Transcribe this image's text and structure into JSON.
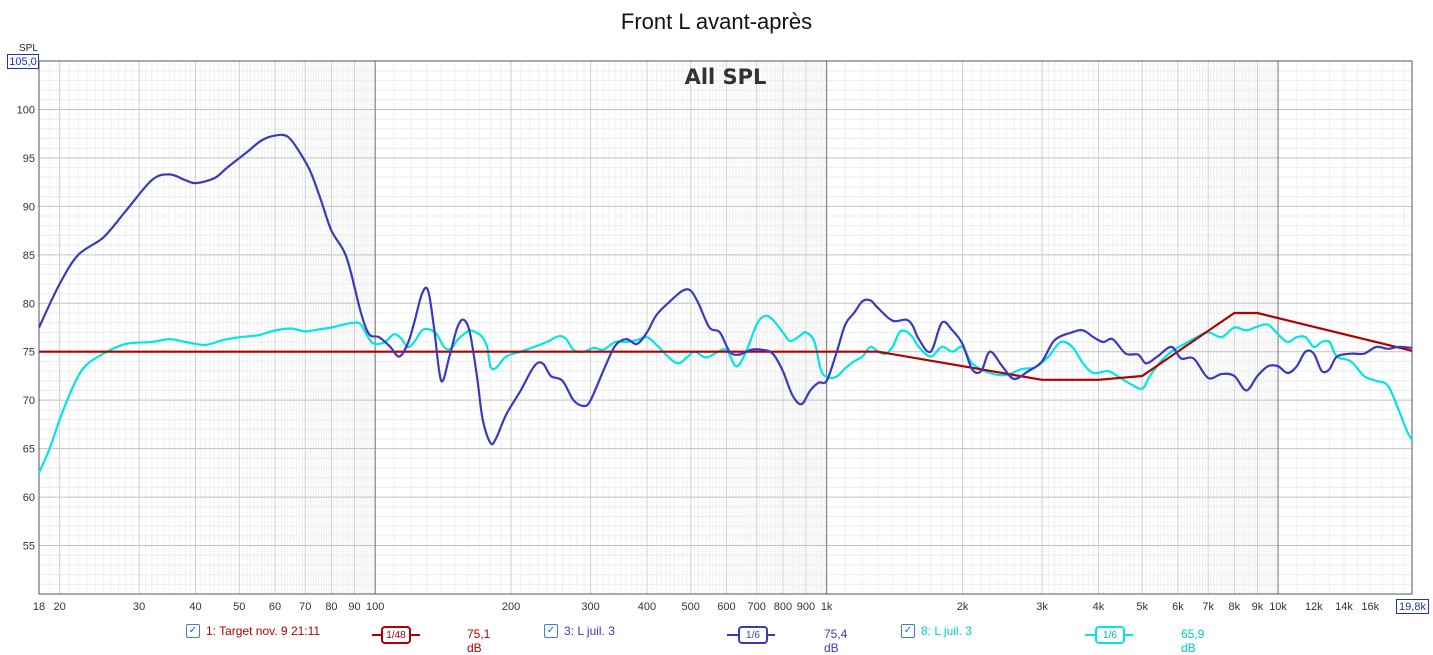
{
  "window": {
    "title": "Front L avant-après"
  },
  "axis": {
    "y_unit": "SPL",
    "y_top_value": "105,0",
    "x_end_value": "19,8k"
  },
  "legend": [
    {
      "checked": true,
      "label": "1: Target nov. 9 21:11",
      "smoothing": "1/48",
      "level": "75,1 dB",
      "color": "#b00000"
    },
    {
      "checked": true,
      "label": "3: L juil. 3",
      "smoothing": "1/6",
      "level": "75,4 dB",
      "color": "#3a3ac0"
    },
    {
      "checked": true,
      "label": "8: L juil. 3",
      "smoothing": "1/6",
      "level": "65,9 dB",
      "color": "#00e5e5"
    }
  ],
  "chart_data": {
    "type": "line",
    "title": "Front L avant-après",
    "subtitle": "All SPL",
    "xlabel": "",
    "ylabel": "SPL",
    "x_scale": "log",
    "xlim": [
      18,
      19800
    ],
    "ylim": [
      50,
      105
    ],
    "grid": true,
    "x_ticks": [
      {
        "v": 18,
        "label": "18"
      },
      {
        "v": 20,
        "label": "20"
      },
      {
        "v": 30,
        "label": "30"
      },
      {
        "v": 40,
        "label": "40"
      },
      {
        "v": 50,
        "label": "50"
      },
      {
        "v": 60,
        "label": "60"
      },
      {
        "v": 70,
        "label": "70"
      },
      {
        "v": 80,
        "label": "80"
      },
      {
        "v": 90,
        "label": "90"
      },
      {
        "v": 100,
        "label": "100"
      },
      {
        "v": 200,
        "label": "200"
      },
      {
        "v": 300,
        "label": "300"
      },
      {
        "v": 400,
        "label": "400"
      },
      {
        "v": 500,
        "label": "500"
      },
      {
        "v": 600,
        "label": "600"
      },
      {
        "v": 700,
        "label": "700"
      },
      {
        "v": 800,
        "label": "800"
      },
      {
        "v": 900,
        "label": "900"
      },
      {
        "v": 1000,
        "label": "1k"
      },
      {
        "v": 2000,
        "label": "2k"
      },
      {
        "v": 3000,
        "label": "3k"
      },
      {
        "v": 4000,
        "label": "4k"
      },
      {
        "v": 5000,
        "label": "5k"
      },
      {
        "v": 6000,
        "label": "6k"
      },
      {
        "v": 7000,
        "label": "7k"
      },
      {
        "v": 8000,
        "label": "8k"
      },
      {
        "v": 9000,
        "label": "9k"
      },
      {
        "v": 10000,
        "label": "10k"
      },
      {
        "v": 12000,
        "label": "12k"
      },
      {
        "v": 14000,
        "label": "14k"
      },
      {
        "v": 16000,
        "label": "16k"
      }
    ],
    "y_ticks": [
      55,
      60,
      65,
      70,
      75,
      80,
      85,
      90,
      95,
      100
    ],
    "series": [
      {
        "name": "1: Target nov. 9 21:11",
        "color": "#b00000",
        "points": [
          [
            18,
            75
          ],
          [
            1300,
            75
          ],
          [
            3000,
            72.1
          ],
          [
            4000,
            72.1
          ],
          [
            5000,
            72.5
          ],
          [
            8000,
            79
          ],
          [
            9000,
            79
          ],
          [
            19800,
            75.1
          ]
        ]
      },
      {
        "name": "3: L juil. 3",
        "color": "#3a3ac0",
        "points": [
          [
            18,
            77.5
          ],
          [
            20,
            82
          ],
          [
            22,
            85
          ],
          [
            25,
            86.8
          ],
          [
            28,
            89.5
          ],
          [
            32,
            92.7
          ],
          [
            35,
            93.3
          ],
          [
            38,
            92.7
          ],
          [
            40,
            92.4
          ],
          [
            44,
            92.9
          ],
          [
            47,
            94
          ],
          [
            52,
            95.6
          ],
          [
            56,
            96.8
          ],
          [
            60,
            97.3
          ],
          [
            64,
            97.2
          ],
          [
            68,
            95.6
          ],
          [
            72,
            93.5
          ],
          [
            76,
            90.5
          ],
          [
            80,
            87.5
          ],
          [
            85,
            85.5
          ],
          [
            88,
            83.5
          ],
          [
            93,
            79
          ],
          [
            97,
            76.8
          ],
          [
            102,
            76.5
          ],
          [
            108,
            75.5
          ],
          [
            113,
            74.5
          ],
          [
            118,
            75.8
          ],
          [
            122,
            78
          ],
          [
            127,
            81
          ],
          [
            131,
            81.3
          ],
          [
            135,
            77.5
          ],
          [
            140,
            72
          ],
          [
            146,
            74.5
          ],
          [
            152,
            77.5
          ],
          [
            157,
            78.3
          ],
          [
            162,
            77
          ],
          [
            168,
            72.5
          ],
          [
            173,
            68
          ],
          [
            180,
            65.6
          ],
          [
            185,
            66
          ],
          [
            195,
            68.5
          ],
          [
            210,
            71
          ],
          [
            225,
            73.5
          ],
          [
            235,
            73.8
          ],
          [
            245,
            72.5
          ],
          [
            260,
            72
          ],
          [
            275,
            70
          ],
          [
            290,
            69.4
          ],
          [
            300,
            70
          ],
          [
            320,
            73
          ],
          [
            340,
            75.6
          ],
          [
            360,
            76.3
          ],
          [
            380,
            75.8
          ],
          [
            400,
            77
          ],
          [
            420,
            78.8
          ],
          [
            450,
            80.2
          ],
          [
            480,
            81.3
          ],
          [
            500,
            81.3
          ],
          [
            520,
            80
          ],
          [
            550,
            77.5
          ],
          [
            580,
            77
          ],
          [
            610,
            75
          ],
          [
            640,
            74.7
          ],
          [
            680,
            75.2
          ],
          [
            720,
            75.2
          ],
          [
            760,
            74.8
          ],
          [
            800,
            73
          ],
          [
            840,
            70.5
          ],
          [
            880,
            69.6
          ],
          [
            920,
            71
          ],
          [
            960,
            71.8
          ],
          [
            1000,
            72
          ],
          [
            1050,
            74.8
          ],
          [
            1100,
            77.8
          ],
          [
            1150,
            79
          ],
          [
            1200,
            80.2
          ],
          [
            1250,
            80.3
          ],
          [
            1300,
            79.5
          ],
          [
            1400,
            78.2
          ],
          [
            1500,
            78.3
          ],
          [
            1550,
            77.7
          ],
          [
            1600,
            76.3
          ],
          [
            1700,
            75
          ],
          [
            1800,
            78
          ],
          [
            1900,
            77.2
          ],
          [
            2000,
            75.8
          ],
          [
            2100,
            73.2
          ],
          [
            2200,
            73
          ],
          [
            2300,
            75
          ],
          [
            2450,
            73.5
          ],
          [
            2600,
            72.2
          ],
          [
            2800,
            73
          ],
          [
            3000,
            74
          ],
          [
            3200,
            76.2
          ],
          [
            3500,
            77
          ],
          [
            3700,
            77.2
          ],
          [
            3900,
            76.5
          ],
          [
            4100,
            76
          ],
          [
            4300,
            76.3
          ],
          [
            4600,
            74.8
          ],
          [
            4900,
            74.7
          ],
          [
            5100,
            73.8
          ],
          [
            5400,
            74.5
          ],
          [
            5800,
            75.5
          ],
          [
            6100,
            74.3
          ],
          [
            6500,
            74.3
          ],
          [
            7000,
            72.3
          ],
          [
            7500,
            72.7
          ],
          [
            8000,
            72.5
          ],
          [
            8500,
            71
          ],
          [
            9000,
            72.5
          ],
          [
            9500,
            73.5
          ],
          [
            10000,
            73.5
          ],
          [
            10500,
            72.8
          ],
          [
            11000,
            73.5
          ],
          [
            11500,
            75
          ],
          [
            12000,
            74.8
          ],
          [
            12500,
            73
          ],
          [
            13000,
            73.2
          ],
          [
            13500,
            74.5
          ],
          [
            14500,
            74.8
          ],
          [
            15500,
            74.8
          ],
          [
            16500,
            75.5
          ],
          [
            17500,
            75.3
          ],
          [
            18500,
            75.5
          ],
          [
            19800,
            75.4
          ]
        ]
      },
      {
        "name": "8: L juil. 3",
        "color": "#00e5e5",
        "points": [
          [
            18,
            62.5
          ],
          [
            19,
            65
          ],
          [
            20,
            68
          ],
          [
            21,
            70.5
          ],
          [
            22,
            72.5
          ],
          [
            23,
            73.7
          ],
          [
            25,
            74.8
          ],
          [
            28,
            75.8
          ],
          [
            32,
            76
          ],
          [
            35,
            76.3
          ],
          [
            38,
            76
          ],
          [
            42,
            75.7
          ],
          [
            46,
            76.2
          ],
          [
            50,
            76.5
          ],
          [
            55,
            76.7
          ],
          [
            60,
            77.2
          ],
          [
            65,
            77.4
          ],
          [
            70,
            77.1
          ],
          [
            75,
            77.3
          ],
          [
            80,
            77.5
          ],
          [
            85,
            77.8
          ],
          [
            90,
            78
          ],
          [
            93,
            77.8
          ],
          [
            97,
            76.3
          ],
          [
            100,
            75.8
          ],
          [
            105,
            76
          ],
          [
            110,
            76.8
          ],
          [
            114,
            76.4
          ],
          [
            118,
            75.5
          ],
          [
            122,
            76
          ],
          [
            127,
            77.2
          ],
          [
            132,
            77.3
          ],
          [
            137,
            76.8
          ],
          [
            142,
            75.5
          ],
          [
            147,
            75.3
          ],
          [
            152,
            76.2
          ],
          [
            157,
            76.8
          ],
          [
            162,
            77.2
          ],
          [
            167,
            77
          ],
          [
            172,
            76.6
          ],
          [
            177,
            75.5
          ],
          [
            180,
            73.5
          ],
          [
            185,
            73.3
          ],
          [
            195,
            74.5
          ],
          [
            210,
            75
          ],
          [
            225,
            75.5
          ],
          [
            240,
            76
          ],
          [
            255,
            76.6
          ],
          [
            265,
            76.3
          ],
          [
            275,
            75.2
          ],
          [
            290,
            75
          ],
          [
            305,
            75.4
          ],
          [
            320,
            75.2
          ],
          [
            340,
            76
          ],
          [
            360,
            76
          ],
          [
            380,
            76.2
          ],
          [
            400,
            76.5
          ],
          [
            420,
            75.7
          ],
          [
            450,
            74.3
          ],
          [
            470,
            73.8
          ],
          [
            490,
            74.4
          ],
          [
            510,
            75
          ],
          [
            540,
            74.4
          ],
          [
            570,
            74.9
          ],
          [
            600,
            75.2
          ],
          [
            630,
            73.5
          ],
          [
            660,
            74.8
          ],
          [
            700,
            77.8
          ],
          [
            730,
            78.7
          ],
          [
            760,
            78.3
          ],
          [
            800,
            77
          ],
          [
            830,
            76.1
          ],
          [
            870,
            76.6
          ],
          [
            900,
            77
          ],
          [
            940,
            76
          ],
          [
            970,
            73.2
          ],
          [
            1000,
            72.4
          ],
          [
            1050,
            72.4
          ],
          [
            1100,
            73.3
          ],
          [
            1150,
            74
          ],
          [
            1200,
            74.5
          ],
          [
            1250,
            75.5
          ],
          [
            1300,
            75
          ],
          [
            1350,
            74.8
          ],
          [
            1400,
            75.5
          ],
          [
            1450,
            77
          ],
          [
            1500,
            77.1
          ],
          [
            1550,
            76.5
          ],
          [
            1600,
            75.5
          ],
          [
            1700,
            74.5
          ],
          [
            1800,
            75.5
          ],
          [
            1900,
            75
          ],
          [
            2000,
            75.5
          ],
          [
            2100,
            73.8
          ],
          [
            2300,
            72.8
          ],
          [
            2500,
            72.6
          ],
          [
            2700,
            73.2
          ],
          [
            2900,
            73.4
          ],
          [
            3100,
            74.5
          ],
          [
            3300,
            76
          ],
          [
            3500,
            75.5
          ],
          [
            3700,
            73.8
          ],
          [
            3900,
            72.8
          ],
          [
            4200,
            73
          ],
          [
            4400,
            72.5
          ],
          [
            4700,
            71.7
          ],
          [
            5000,
            71.2
          ],
          [
            5200,
            72.5
          ],
          [
            5500,
            74
          ],
          [
            5800,
            75
          ],
          [
            6200,
            75.8
          ],
          [
            6600,
            76.5
          ],
          [
            7000,
            77
          ],
          [
            7500,
            76.5
          ],
          [
            8000,
            77.5
          ],
          [
            8500,
            77.2
          ],
          [
            9000,
            77.6
          ],
          [
            9500,
            77.8
          ],
          [
            10000,
            76.8
          ],
          [
            10500,
            76
          ],
          [
            11000,
            76.5
          ],
          [
            11500,
            76.5
          ],
          [
            12000,
            75.5
          ],
          [
            12500,
            76
          ],
          [
            13000,
            76
          ],
          [
            13500,
            74.5
          ],
          [
            14500,
            74
          ],
          [
            15500,
            72.5
          ],
          [
            16500,
            72
          ],
          [
            17500,
            71.5
          ],
          [
            18500,
            69
          ],
          [
            19300,
            66.8
          ],
          [
            19800,
            65.9
          ]
        ]
      }
    ]
  }
}
